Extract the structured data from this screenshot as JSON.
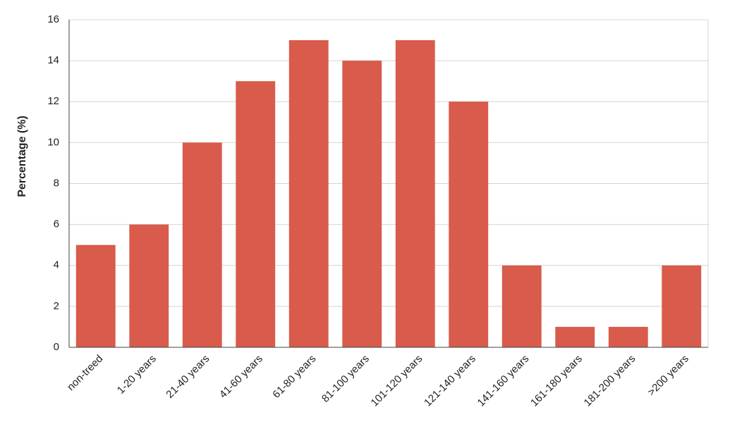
{
  "chart_data": {
    "type": "bar",
    "y_label": "Percentage (%)",
    "categories": [
      "non-treed",
      "1-20 years",
      "21-40 years",
      "41-60 years",
      "61-80 years",
      "81-100 years",
      "101-120 years",
      "121-140 years",
      "141-160 years",
      "161-180 years",
      "181-200 years",
      ">200 years"
    ],
    "values": [
      5,
      6,
      10,
      13,
      15,
      14,
      15,
      12,
      4,
      1,
      1,
      4
    ],
    "color": "#d95b4b",
    "ylim": [
      0,
      16
    ],
    "yticks": [
      0,
      2,
      4,
      6,
      8,
      10,
      12,
      14,
      16
    ],
    "grid": true
  }
}
